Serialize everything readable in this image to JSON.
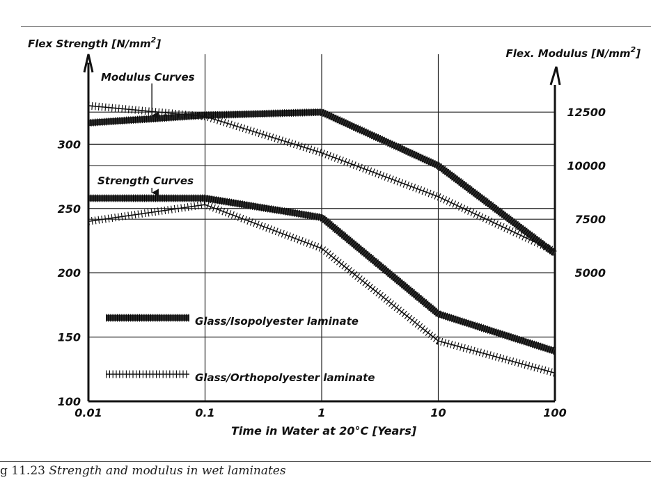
{
  "chart_data": {
    "type": "line",
    "xlabel": "Time in Water at 20°C [Years]",
    "x_scale": "log",
    "xlim": [
      0.01,
      100
    ],
    "x_ticks": [
      "0.01",
      "0.1",
      "1",
      "10",
      "100"
    ],
    "y_left": {
      "label_main": "Flex Strength [N/mm",
      "label_sup": "2",
      "label_end": "]",
      "ylim": [
        100,
        370
      ],
      "ticks": [
        "100",
        "150",
        "200",
        "250",
        "300"
      ]
    },
    "y_right": {
      "label_main": "Flex. Modulus [N/mm",
      "label_sup": "2",
      "label_end": "]",
      "ylim": [
        -1000,
        15200
      ],
      "ticks": [
        "5000",
        "7500",
        "10000",
        "12500"
      ]
    },
    "annotations": [
      {
        "text": "Modulus Curves",
        "arrow_x": 0.035
      },
      {
        "text": "Strength Curves",
        "arrow_x": 0.035
      }
    ],
    "legend": [
      {
        "name": "Glass/Isopolyester laminate",
        "style": "thick"
      },
      {
        "name": "Glass/Orthopolyester laminate",
        "style": "thin"
      }
    ],
    "series": [
      {
        "name": "Glass/Isopolyester laminate",
        "group": "Strength",
        "axis": "left",
        "style": "thick",
        "x": [
          0.01,
          0.1,
          1,
          10,
          100
        ],
        "y": [
          258,
          258,
          243,
          168,
          139
        ]
      },
      {
        "name": "Glass/Orthopolyester laminate",
        "group": "Strength",
        "axis": "left",
        "style": "thin",
        "x": [
          0.01,
          0.1,
          1,
          10,
          100
        ],
        "y": [
          240,
          253,
          219,
          147,
          122
        ]
      },
      {
        "name": "Glass/Isopolyester laminate",
        "group": "Modulus",
        "axis": "right",
        "style": "thick",
        "x": [
          0.01,
          0.1,
          1,
          10,
          100
        ],
        "y": [
          12000,
          12350,
          12500,
          10000,
          5900
        ]
      },
      {
        "name": "Glass/Orthopolyester laminate",
        "group": "Modulus",
        "axis": "right",
        "style": "thin",
        "x": [
          0.01,
          0.1,
          1,
          10,
          100
        ],
        "y": [
          12800,
          12300,
          10600,
          8550,
          6000
        ]
      }
    ]
  },
  "caption": {
    "fig": "g 11.23",
    "text": "Strength and modulus in wet laminates"
  }
}
